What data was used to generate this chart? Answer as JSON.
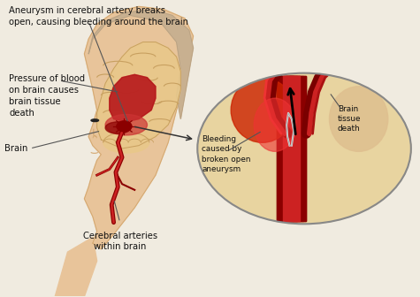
{
  "bg_color": "#f0ebe0",
  "labels": {
    "aneurysm": "Aneurysm in cerebral artery breaks\nopen, causing bleeding around the brain",
    "pressure": "Pressure of blood\non brain causes\nbrain tissue\ndeath",
    "brain": "Brain",
    "cerebral": "Cerebral arteries\nwithin brain",
    "bleeding": "Bleeding\ncaused by\nbroken open\naneurysm",
    "tissue_death": "Brain\ntissue\ndeath"
  },
  "font_size": 7.2,
  "skin_color": "#e8c49a",
  "skin_dark": "#d4a870",
  "brain_color": "#d4a874",
  "brain_light": "#e8c88a",
  "blood_color": "#8b0000",
  "blood_mid": "#aa1111",
  "blood_light": "#cc3333",
  "artery_color": "#8b0000",
  "artery_inner": "#cc2222",
  "circle_bg": "#e8d4a0",
  "circle_border": "#888888",
  "hair_color": "#c8b090",
  "text_color": "#111111",
  "line_color": "#555555"
}
